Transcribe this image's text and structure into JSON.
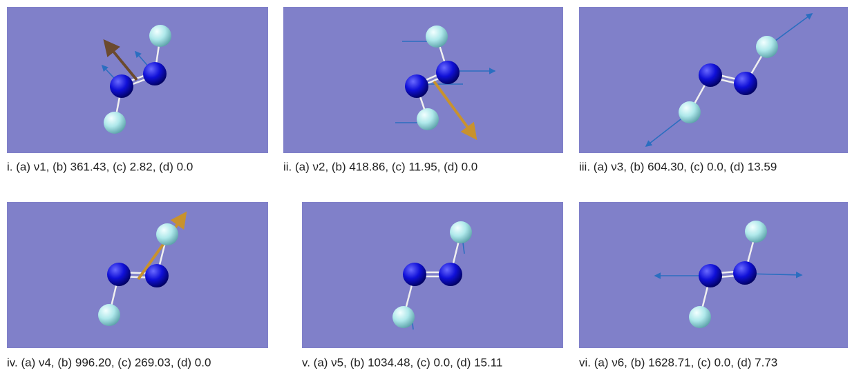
{
  "panels": [
    {
      "caption": "i. (a) ν1, (b) 361.43, (c) 2.82, (d) 0.0"
    },
    {
      "caption": "ii. (a) ν2, (b) 418.86, (c) 11.95, (d) 0.0"
    },
    {
      "caption": "iii. (a) ν3, (b) 604.30, (c) 0.0, (d) 13.59"
    },
    {
      "caption": "iv. (a) ν4, (b) 996.20, (c) 269.03, (d) 0.0"
    },
    {
      "caption": "v. (a) ν5, (b) 1034.48, (c) 0.0, (d) 15.11"
    },
    {
      "caption": "vi. (a) ν6, (b) 1628.71, (c) 0.0, (d) 7.73"
    }
  ]
}
